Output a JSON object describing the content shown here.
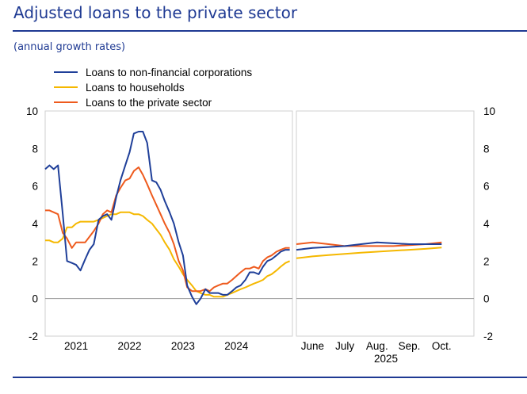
{
  "header": {
    "title": "Adjusted loans to the private sector",
    "subtitle": "(annual growth rates)"
  },
  "colors": {
    "nfc": "#1f3f99",
    "households": "#f5b800",
    "private": "#ee5a1d",
    "accent": "#1f3a93"
  },
  "chart_data": {
    "type": "line",
    "title": "Adjusted loans to the private sector",
    "subtitle": "(annual growth rates)",
    "ylim": [
      -2,
      10
    ],
    "yticks": [
      -2,
      0,
      2,
      4,
      6,
      8,
      10
    ],
    "legend": [
      {
        "key": "nfc",
        "label": "Loans to non-financial corporations"
      },
      {
        "key": "households",
        "label": "Loans to households"
      },
      {
        "key": "private",
        "label": "Loans to the private sector"
      }
    ],
    "left_panel": {
      "x_range": [
        2020.42,
        2025.05
      ],
      "x_ticks": [
        {
          "label": "2021",
          "x": 2021.0
        },
        {
          "label": "2022",
          "x": 2022.0
        },
        {
          "label": "2023",
          "x": 2023.0
        },
        {
          "label": "2024",
          "x": 2024.0
        }
      ],
      "series": [
        {
          "key": "nfc",
          "name": "Loans to non-financial corporations",
          "x": [
            2020.42,
            2020.5,
            2020.58,
            2020.66,
            2020.75,
            2020.83,
            2020.92,
            2021.0,
            2021.08,
            2021.17,
            2021.25,
            2021.33,
            2021.42,
            2021.5,
            2021.58,
            2021.66,
            2021.75,
            2021.83,
            2021.92,
            2022.0,
            2022.08,
            2022.17,
            2022.25,
            2022.33,
            2022.42,
            2022.5,
            2022.58,
            2022.66,
            2022.75,
            2022.83,
            2022.92,
            2023.0,
            2023.08,
            2023.17,
            2023.25,
            2023.33,
            2023.42,
            2023.5,
            2023.58,
            2023.66,
            2023.75,
            2023.83,
            2023.92,
            2024.0,
            2024.08,
            2024.17,
            2024.25,
            2024.33,
            2024.42,
            2024.5,
            2024.58,
            2024.66,
            2024.75,
            2024.83,
            2024.92,
            2025.0
          ],
          "values": [
            6.9,
            7.1,
            6.9,
            7.1,
            4.5,
            2.0,
            1.9,
            1.8,
            1.5,
            2.1,
            2.6,
            2.9,
            4.2,
            4.4,
            4.5,
            4.2,
            5.4,
            6.3,
            7.1,
            7.8,
            8.8,
            8.9,
            8.9,
            8.3,
            6.3,
            6.2,
            5.8,
            5.2,
            4.6,
            4.0,
            3.0,
            2.3,
            0.7,
            0.1,
            -0.3,
            0.0,
            0.5,
            0.3,
            0.3,
            0.3,
            0.2,
            0.2,
            0.4,
            0.6,
            0.7,
            1.0,
            1.4,
            1.4,
            1.3,
            1.7,
            2.0,
            2.1,
            2.3,
            2.5,
            2.6,
            2.6
          ]
        },
        {
          "key": "households",
          "name": "Loans to households",
          "x": [
            2020.42,
            2020.5,
            2020.58,
            2020.66,
            2020.75,
            2020.83,
            2020.92,
            2021.0,
            2021.08,
            2021.17,
            2021.25,
            2021.33,
            2021.42,
            2021.5,
            2021.58,
            2021.66,
            2021.75,
            2021.83,
            2021.92,
            2022.0,
            2022.08,
            2022.17,
            2022.25,
            2022.33,
            2022.42,
            2022.5,
            2022.58,
            2022.66,
            2022.75,
            2022.83,
            2022.92,
            2023.0,
            2023.08,
            2023.17,
            2023.25,
            2023.33,
            2023.42,
            2023.5,
            2023.58,
            2023.66,
            2023.75,
            2023.83,
            2023.92,
            2024.0,
            2024.08,
            2024.17,
            2024.25,
            2024.33,
            2024.42,
            2024.5,
            2024.58,
            2024.66,
            2024.75,
            2024.83,
            2024.92,
            2025.0
          ],
          "values": [
            3.1,
            3.1,
            3.0,
            3.0,
            3.2,
            3.8,
            3.8,
            4.0,
            4.1,
            4.1,
            4.1,
            4.1,
            4.2,
            4.3,
            4.4,
            4.5,
            4.5,
            4.6,
            4.6,
            4.6,
            4.5,
            4.5,
            4.4,
            4.2,
            4.0,
            3.7,
            3.4,
            3.0,
            2.6,
            2.1,
            1.7,
            1.3,
            1.0,
            0.7,
            0.4,
            0.3,
            0.2,
            0.2,
            0.1,
            0.1,
            0.1,
            0.2,
            0.3,
            0.4,
            0.5,
            0.6,
            0.7,
            0.8,
            0.9,
            1.0,
            1.2,
            1.3,
            1.5,
            1.7,
            1.9,
            2.0
          ]
        },
        {
          "key": "private",
          "name": "Loans to the private sector",
          "x": [
            2020.42,
            2020.5,
            2020.58,
            2020.66,
            2020.75,
            2020.83,
            2020.92,
            2021.0,
            2021.08,
            2021.17,
            2021.25,
            2021.33,
            2021.42,
            2021.5,
            2021.58,
            2021.66,
            2021.75,
            2021.83,
            2021.92,
            2022.0,
            2022.08,
            2022.17,
            2022.25,
            2022.33,
            2022.42,
            2022.5,
            2022.58,
            2022.66,
            2022.75,
            2022.83,
            2022.92,
            2023.0,
            2023.08,
            2023.17,
            2023.25,
            2023.33,
            2023.42,
            2023.5,
            2023.58,
            2023.66,
            2023.75,
            2023.83,
            2023.92,
            2024.0,
            2024.08,
            2024.17,
            2024.25,
            2024.33,
            2024.42,
            2024.5,
            2024.58,
            2024.66,
            2024.75,
            2024.83,
            2024.92,
            2025.0
          ],
          "values": [
            4.7,
            4.7,
            4.6,
            4.5,
            3.5,
            3.2,
            2.7,
            3.0,
            3.0,
            3.0,
            3.3,
            3.6,
            4.0,
            4.5,
            4.7,
            4.6,
            5.5,
            5.9,
            6.3,
            6.4,
            6.8,
            7.0,
            6.6,
            6.1,
            5.5,
            5.0,
            4.5,
            4.0,
            3.5,
            2.9,
            2.0,
            1.5,
            0.6,
            0.4,
            0.4,
            0.4,
            0.5,
            0.4,
            0.6,
            0.7,
            0.8,
            0.8,
            1.0,
            1.2,
            1.4,
            1.6,
            1.6,
            1.7,
            1.6,
            2.0,
            2.2,
            2.3,
            2.5,
            2.6,
            2.7,
            2.7
          ]
        }
      ]
    },
    "right_panel": {
      "x_range": [
        0.5,
        6.0
      ],
      "x_ticks": [
        {
          "label": "June",
          "x": 1
        },
        {
          "label": "July",
          "x": 2
        },
        {
          "label": "Aug.",
          "x": 3
        },
        {
          "label": "Sep.",
          "x": 4
        },
        {
          "label": "Oct.",
          "x": 5
        }
      ],
      "x_year_label": "2025",
      "series": [
        {
          "key": "nfc",
          "name": "Loans to non-financial corporations",
          "x": [
            0.5,
            1,
            1.5,
            2,
            2.5,
            3,
            3.5,
            4,
            4.5,
            5
          ],
          "values": [
            2.6,
            2.7,
            2.75,
            2.8,
            2.9,
            3.0,
            2.95,
            2.9,
            2.9,
            2.9
          ]
        },
        {
          "key": "households",
          "name": "Loans to households",
          "x": [
            0.5,
            1,
            1.5,
            2,
            2.5,
            3,
            3.5,
            4,
            4.5,
            5
          ],
          "values": [
            2.15,
            2.25,
            2.32,
            2.38,
            2.45,
            2.5,
            2.55,
            2.6,
            2.65,
            2.72
          ]
        },
        {
          "key": "private",
          "name": "Loans to the private sector",
          "x": [
            0.5,
            1,
            1.5,
            2,
            2.5,
            3,
            3.5,
            4,
            4.5,
            5
          ],
          "values": [
            2.9,
            3.0,
            2.9,
            2.8,
            2.8,
            2.8,
            2.8,
            2.85,
            2.9,
            3.0
          ]
        }
      ]
    }
  }
}
